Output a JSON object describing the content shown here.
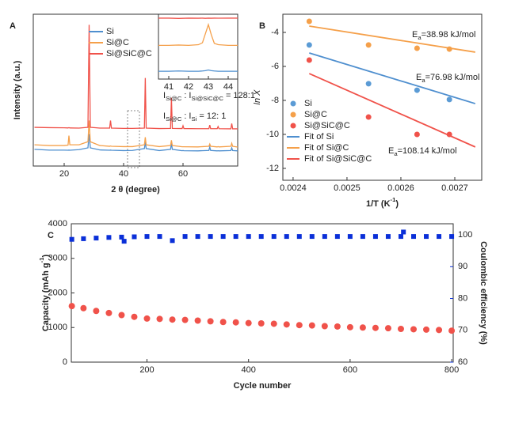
{
  "chart_data": [
    {
      "type": "line",
      "label": "A",
      "xlabel": "2 θ (degree)",
      "ylabel": "Intensity (a.u.)",
      "xlim": [
        9.6,
        78.4
      ],
      "ylim": [
        0,
        100
      ],
      "xticks": [
        20,
        40,
        60
      ],
      "x": [
        10,
        15,
        20,
        21.3,
        21.6,
        21.9,
        25,
        28,
        28.4,
        28.8,
        32,
        35.3,
        35.6,
        35.9,
        40,
        43,
        47,
        47.3,
        47.6,
        52,
        55.8,
        56.1,
        56.4,
        59.7,
        60,
        60.3,
        65,
        68.7,
        69,
        69.3,
        71.5,
        71.8,
        72.1,
        76.1,
        76.4,
        76.7,
        78.4
      ],
      "series": [
        {
          "name": "Si",
          "color": "#4f8fcf",
          "values": [
            11,
            10.5,
            10.5,
            10.4,
            10.5,
            10.4,
            10.8,
            12,
            21,
            12,
            10.6,
            10.4,
            10.5,
            10.4,
            10.2,
            10.3,
            11.5,
            16,
            11.5,
            10.2,
            11,
            15,
            11,
            10.1,
            10.2,
            10.1,
            10,
            10.3,
            12.5,
            10.3,
            10,
            10.1,
            10,
            10.2,
            12,
            10.2,
            10
          ]
        },
        {
          "name": "Si@C",
          "color": "#f5a04a",
          "values": [
            14,
            13.5,
            13.5,
            13.8,
            20,
            14,
            14,
            16,
            30,
            16,
            13.5,
            13,
            13.2,
            13,
            12.8,
            12.8,
            14,
            19,
            14,
            12.8,
            13.5,
            17,
            13.5,
            12.7,
            12.7,
            12.7,
            12.6,
            13,
            14.5,
            13,
            12.6,
            12.8,
            12.6,
            13,
            15,
            13,
            12.5
          ]
        },
        {
          "name": "Si@SiC@C",
          "color": "#f0524a",
          "values": [
            25.5,
            25.3,
            25.2,
            25.1,
            25.3,
            25.1,
            25,
            25.5,
            93,
            25.5,
            25,
            25,
            30,
            25,
            24.8,
            24.8,
            25,
            58,
            25,
            24.7,
            24.8,
            45,
            24.8,
            24.7,
            26.5,
            24.7,
            24.6,
            24.6,
            27,
            24.6,
            24.6,
            26,
            24.6,
            24.5,
            28,
            24.5,
            24.5
          ]
        }
      ],
      "annotations": [
        [
          "I",
          "Si@C",
          " : I",
          "Si@SiC@C",
          " = 128:1"
        ],
        [
          "I",
          "Si@C",
          " : I",
          "Si",
          " = 12:  1"
        ]
      ]
    },
    {
      "type": "line",
      "xlim": [
        40.48,
        44.48
      ],
      "ylim": [
        0,
        100
      ],
      "xticks": [
        41,
        42,
        43,
        44
      ],
      "x": [
        40.48,
        41,
        41.5,
        42,
        42.5,
        42.7,
        42.85,
        43,
        43.15,
        43.3,
        43.5,
        44,
        44.48
      ],
      "series": [
        {
          "color": "#f0524a",
          "values": [
            94,
            94,
            93.5,
            94,
            93.8,
            94,
            93.7,
            94,
            93.8,
            94,
            93.9,
            94,
            94
          ]
        },
        {
          "color": "#f5a04a",
          "values": [
            52,
            52,
            52.5,
            52,
            53,
            56,
            70,
            84,
            68,
            55,
            53,
            52,
            52
          ]
        },
        {
          "color": "#4f8fcf",
          "values": [
            12,
            12,
            12.5,
            12,
            12,
            12.5,
            13,
            14,
            13,
            12.5,
            12,
            12,
            12
          ]
        }
      ]
    },
    {
      "type": "scatter",
      "label": "B",
      "xlabel": [
        "1/T (K",
        "-1",
        ")"
      ],
      "ylabel": "ln X",
      "xlim": [
        0.002381,
        0.00275
      ],
      "ylim": [
        -12.7,
        -2.93
      ],
      "xticks": [
        0.0024,
        0.0025,
        0.0026,
        0.0027
      ],
      "yticks": [
        -12,
        -10,
        -8,
        -6,
        -4
      ],
      "series": [
        {
          "name": "Si",
          "color": "#5b9bd5",
          "mode": "markers",
          "x": [
            0.00243,
            0.00254,
            0.00263,
            0.00269
          ],
          "values": [
            -4.74,
            -7.02,
            -7.4,
            -7.95
          ]
        },
        {
          "name": "Si@C",
          "color": "#f5a04a",
          "mode": "markers",
          "x": [
            0.00243,
            0.00254,
            0.00263,
            0.00269
          ],
          "values": [
            -3.35,
            -4.74,
            -4.93,
            -4.98
          ]
        },
        {
          "name": "Si@SiC@C",
          "color": "#f0524a",
          "mode": "markers",
          "x": [
            0.00243,
            0.00254,
            0.00263,
            0.00269
          ],
          "values": [
            -5.63,
            -8.98,
            -10,
            -10
          ]
        },
        {
          "name": "Fit of Si",
          "color": "#4f8fcf",
          "mode": "lines",
          "x": [
            0.00243,
            0.002738
          ],
          "values": [
            -5.21,
            -8.19
          ]
        },
        {
          "name": "Fit of Si@C",
          "color": "#f5a04a",
          "mode": "lines",
          "x": [
            0.00243,
            0.002738
          ],
          "values": [
            -3.63,
            -5.16
          ]
        },
        {
          "name": "Fit of Si@SiC@C",
          "color": "#f0524a",
          "mode": "lines",
          "x": [
            0.00243,
            0.002738
          ],
          "values": [
            -6.42,
            -10.74
          ]
        }
      ],
      "annotations": [
        {
          "text": [
            "E",
            "a",
            "=38.98 kJ/mol"
          ],
          "color": "#f5a04a"
        },
        {
          "text": [
            "E",
            "a",
            "=76.98 kJ/mol"
          ],
          "color": "#5b9bd5"
        },
        {
          "text": [
            "E",
            "a",
            "=108.14 kJ/mol"
          ],
          "color": "#f0524a"
        }
      ]
    },
    {
      "type": "scatter",
      "label": "C",
      "xlabel": "Cycle number",
      "ylabel": [
        "Capacity (mAh g",
        "-1",
        ")"
      ],
      "y2label": "Coulombic efficiency (%)",
      "xlim": [
        51,
        803
      ],
      "ylim": [
        0,
        4000
      ],
      "y2lim": [
        60,
        103.5
      ],
      "xticks": [
        200,
        400,
        600,
        800
      ],
      "yticks": [
        0,
        1000,
        2000,
        3000,
        4000
      ],
      "y2ticks": [
        60,
        70,
        80,
        90,
        100
      ],
      "series": [
        {
          "color": "#f0524a",
          "x": [
            52,
            75,
            100,
            125,
            150,
            175,
            200,
            225,
            250,
            275,
            300,
            325,
            350,
            375,
            400,
            425,
            450,
            475,
            500,
            525,
            550,
            575,
            600,
            625,
            650,
            675,
            700,
            725,
            750,
            775,
            800
          ],
          "values": [
            1620,
            1560,
            1480,
            1420,
            1360,
            1310,
            1260,
            1250,
            1230,
            1220,
            1200,
            1180,
            1160,
            1150,
            1130,
            1120,
            1110,
            1090,
            1070,
            1060,
            1040,
            1030,
            1010,
            1000,
            990,
            980,
            960,
            950,
            940,
            930,
            910
          ]
        },
        {
          "color": "#0a2fd8",
          "axis": "y2",
          "x": [
            52,
            75,
            100,
            125,
            150,
            155,
            175,
            200,
            225,
            250,
            275,
            300,
            325,
            350,
            375,
            400,
            425,
            450,
            475,
            500,
            525,
            550,
            575,
            600,
            625,
            650,
            675,
            700,
            705,
            725,
            750,
            775,
            800
          ],
          "values": [
            98.6,
            98.8,
            99,
            99.2,
            99.3,
            98,
            99.4,
            99.5,
            99.5,
            98.2,
            99.5,
            99.5,
            99.5,
            99.5,
            99.5,
            99.5,
            99.5,
            99.5,
            99.5,
            99.5,
            99.5,
            99.5,
            99.5,
            99.5,
            99.5,
            99.5,
            99.5,
            99.5,
            100.9,
            99.5,
            99.5,
            99.5,
            99.5
          ]
        }
      ]
    }
  ]
}
